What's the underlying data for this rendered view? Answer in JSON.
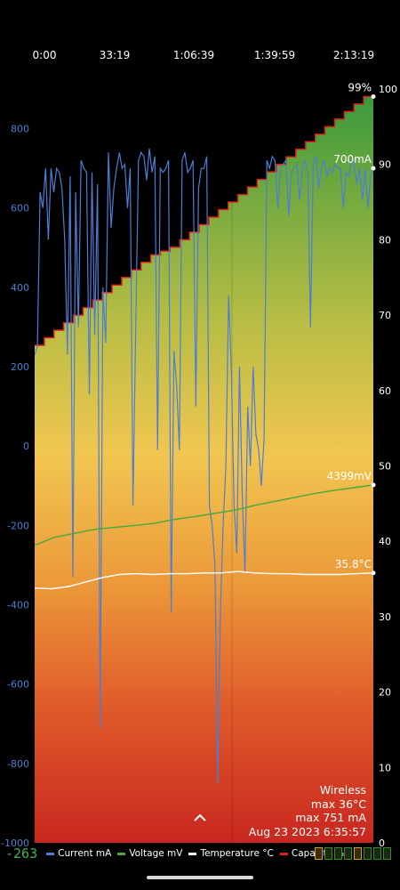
{
  "chart_data": {
    "type": "line",
    "x_ticks": [
      "0:00",
      "33:19",
      "1:06:39",
      "1:39:59",
      "2:13:19"
    ],
    "left_axis": {
      "ticks": [
        "800",
        "600",
        "400",
        "200",
        "0",
        "-200",
        "-400",
        "-600",
        "-800",
        "-1000"
      ],
      "ylim": [
        -1000,
        900
      ],
      "unit": "mA"
    },
    "right_axis": {
      "ticks": [
        "100",
        "90",
        "80",
        "70",
        "60",
        "50",
        "40",
        "30",
        "20",
        "10",
        "0"
      ],
      "ylim": [
        0,
        100
      ],
      "unit": "%"
    },
    "series": [
      {
        "name": "Current mA",
        "axis": "left",
        "color": "#4a7fd4",
        "values": [
          230,
          250,
          640,
          600,
          700,
          520,
          700,
          640,
          700,
          690,
          650,
          520,
          230,
          680,
          -330,
          640,
          300,
          720,
          700,
          690,
          130,
          690,
          280,
          660,
          -710,
          400,
          260,
          740,
          550,
          650,
          700,
          740,
          700,
          710,
          600,
          700,
          -150,
          300,
          720,
          740,
          730,
          670,
          750,
          690,
          730,
          -10,
          700,
          690,
          700,
          720,
          -420,
          240,
          150,
          -10,
          720,
          740,
          690,
          700,
          720,
          100,
          650,
          700,
          700,
          730,
          -150,
          -200,
          -300,
          -850,
          -420,
          -200,
          -50,
          380,
          200,
          -150,
          -270,
          200,
          -120,
          -320,
          100,
          -50,
          200,
          30,
          -10,
          -100,
          20,
          720,
          700,
          730,
          720,
          600,
          700,
          710,
          720,
          580,
          690,
          700,
          710,
          620,
          700,
          720,
          690,
          300,
          710,
          730,
          650,
          700,
          720,
          680,
          700,
          690,
          710,
          700,
          700,
          600,
          690,
          680,
          720,
          710,
          660,
          700,
          620,
          700,
          600,
          680,
          700
        ]
      },
      {
        "name": "Voltage mV",
        "axis": "left",
        "color": "#4aa83e",
        "values": [
          -250,
          -230,
          -220,
          -210,
          -205,
          -200,
          -195,
          -185,
          -178,
          -170,
          -162,
          -150,
          -140,
          -130,
          -120,
          -112,
          -105,
          -98
        ]
      },
      {
        "name": "Temperature °C",
        "axis": "right",
        "color": "#ffffff",
        "values": [
          33.8,
          33.7,
          34.0,
          34.6,
          35.2,
          35.6,
          35.7,
          35.6,
          35.7,
          35.7,
          35.8,
          35.8,
          36.0,
          35.8,
          35.7,
          35.7,
          35.6,
          35.6,
          35.6,
          35.7,
          35.8
        ]
      },
      {
        "name": "Capacity %",
        "axis": "right",
        "color": "#d9241c",
        "values": [
          66,
          67,
          68,
          69,
          70,
          71,
          72,
          73,
          74,
          75,
          76,
          77,
          78,
          78.5,
          79,
          80,
          81,
          82,
          83,
          84,
          85,
          86,
          87,
          88,
          89,
          90,
          91,
          92,
          93,
          94,
          95,
          96,
          97,
          98,
          99
        ]
      }
    ],
    "end_labels": {
      "capacity": "99%",
      "current": "700mA",
      "voltage": "4399mV",
      "temperature": "35.8°C"
    },
    "legend": [
      "Current mA",
      "Voltage mV",
      "Temperature °C",
      "Capacity %"
    ],
    "legend_placement": "bottom"
  },
  "info": {
    "source": "Wireless",
    "max_temp": "max 36°C",
    "max_current": "max 751 mA",
    "timestamp": "Aug 23 2023 6:35:57"
  },
  "current_reading": "-263"
}
